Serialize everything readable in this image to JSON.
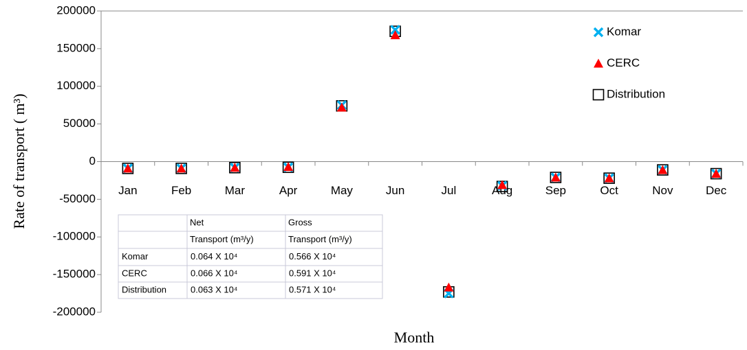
{
  "chart_data": {
    "type": "scatter",
    "x_label": "Month",
    "y_label": "Rate of transport ( m³)",
    "categories": [
      "Jan",
      "Feb",
      "Mar",
      "Apr",
      "May",
      "Jun",
      "Jul",
      "Aug",
      "Sep",
      "Oct",
      "Nov",
      "Dec"
    ],
    "series": [
      {
        "name": "Komar",
        "color": "#00b0f0",
        "marker": "x",
        "values": [
          -9000,
          -9000,
          -8000,
          -7500,
          75000,
          175000,
          -175000,
          -32000,
          -21000,
          -22000,
          -11000,
          -16000
        ]
      },
      {
        "name": "CERC",
        "color": "#ff0000",
        "marker": "triangle",
        "values": [
          -9000,
          -9000,
          -8000,
          -7000,
          72000,
          168000,
          -167000,
          -31000,
          -21000,
          -22000,
          -11000,
          -16000
        ]
      },
      {
        "name": "Distribution",
        "color": "#000000",
        "marker": "square",
        "values": [
          -9000,
          -9000,
          -8000,
          -7500,
          74000,
          173000,
          -173000,
          -33000,
          -21000,
          -22000,
          -11000,
          -16000
        ]
      }
    ],
    "ylim": [
      -200000,
      200000
    ],
    "yticks": [
      -200000,
      -150000,
      -100000,
      -50000,
      0,
      50000,
      100000,
      150000,
      200000
    ],
    "legend": "top-right",
    "table": {
      "header": [
        [
          "Net",
          "Gross"
        ],
        [
          "Transport (m³/y)",
          "Transport (m³/y)"
        ]
      ],
      "rows": [
        [
          "Komar",
          "0.064 X 10⁴",
          "0.566 X 10⁴"
        ],
        [
          "CERC",
          "0.066 X 10⁴",
          "0.591 X 10⁴"
        ],
        [
          "Distribution",
          "0.063 X 10⁴",
          "0.571 X 10⁴"
        ]
      ]
    }
  }
}
